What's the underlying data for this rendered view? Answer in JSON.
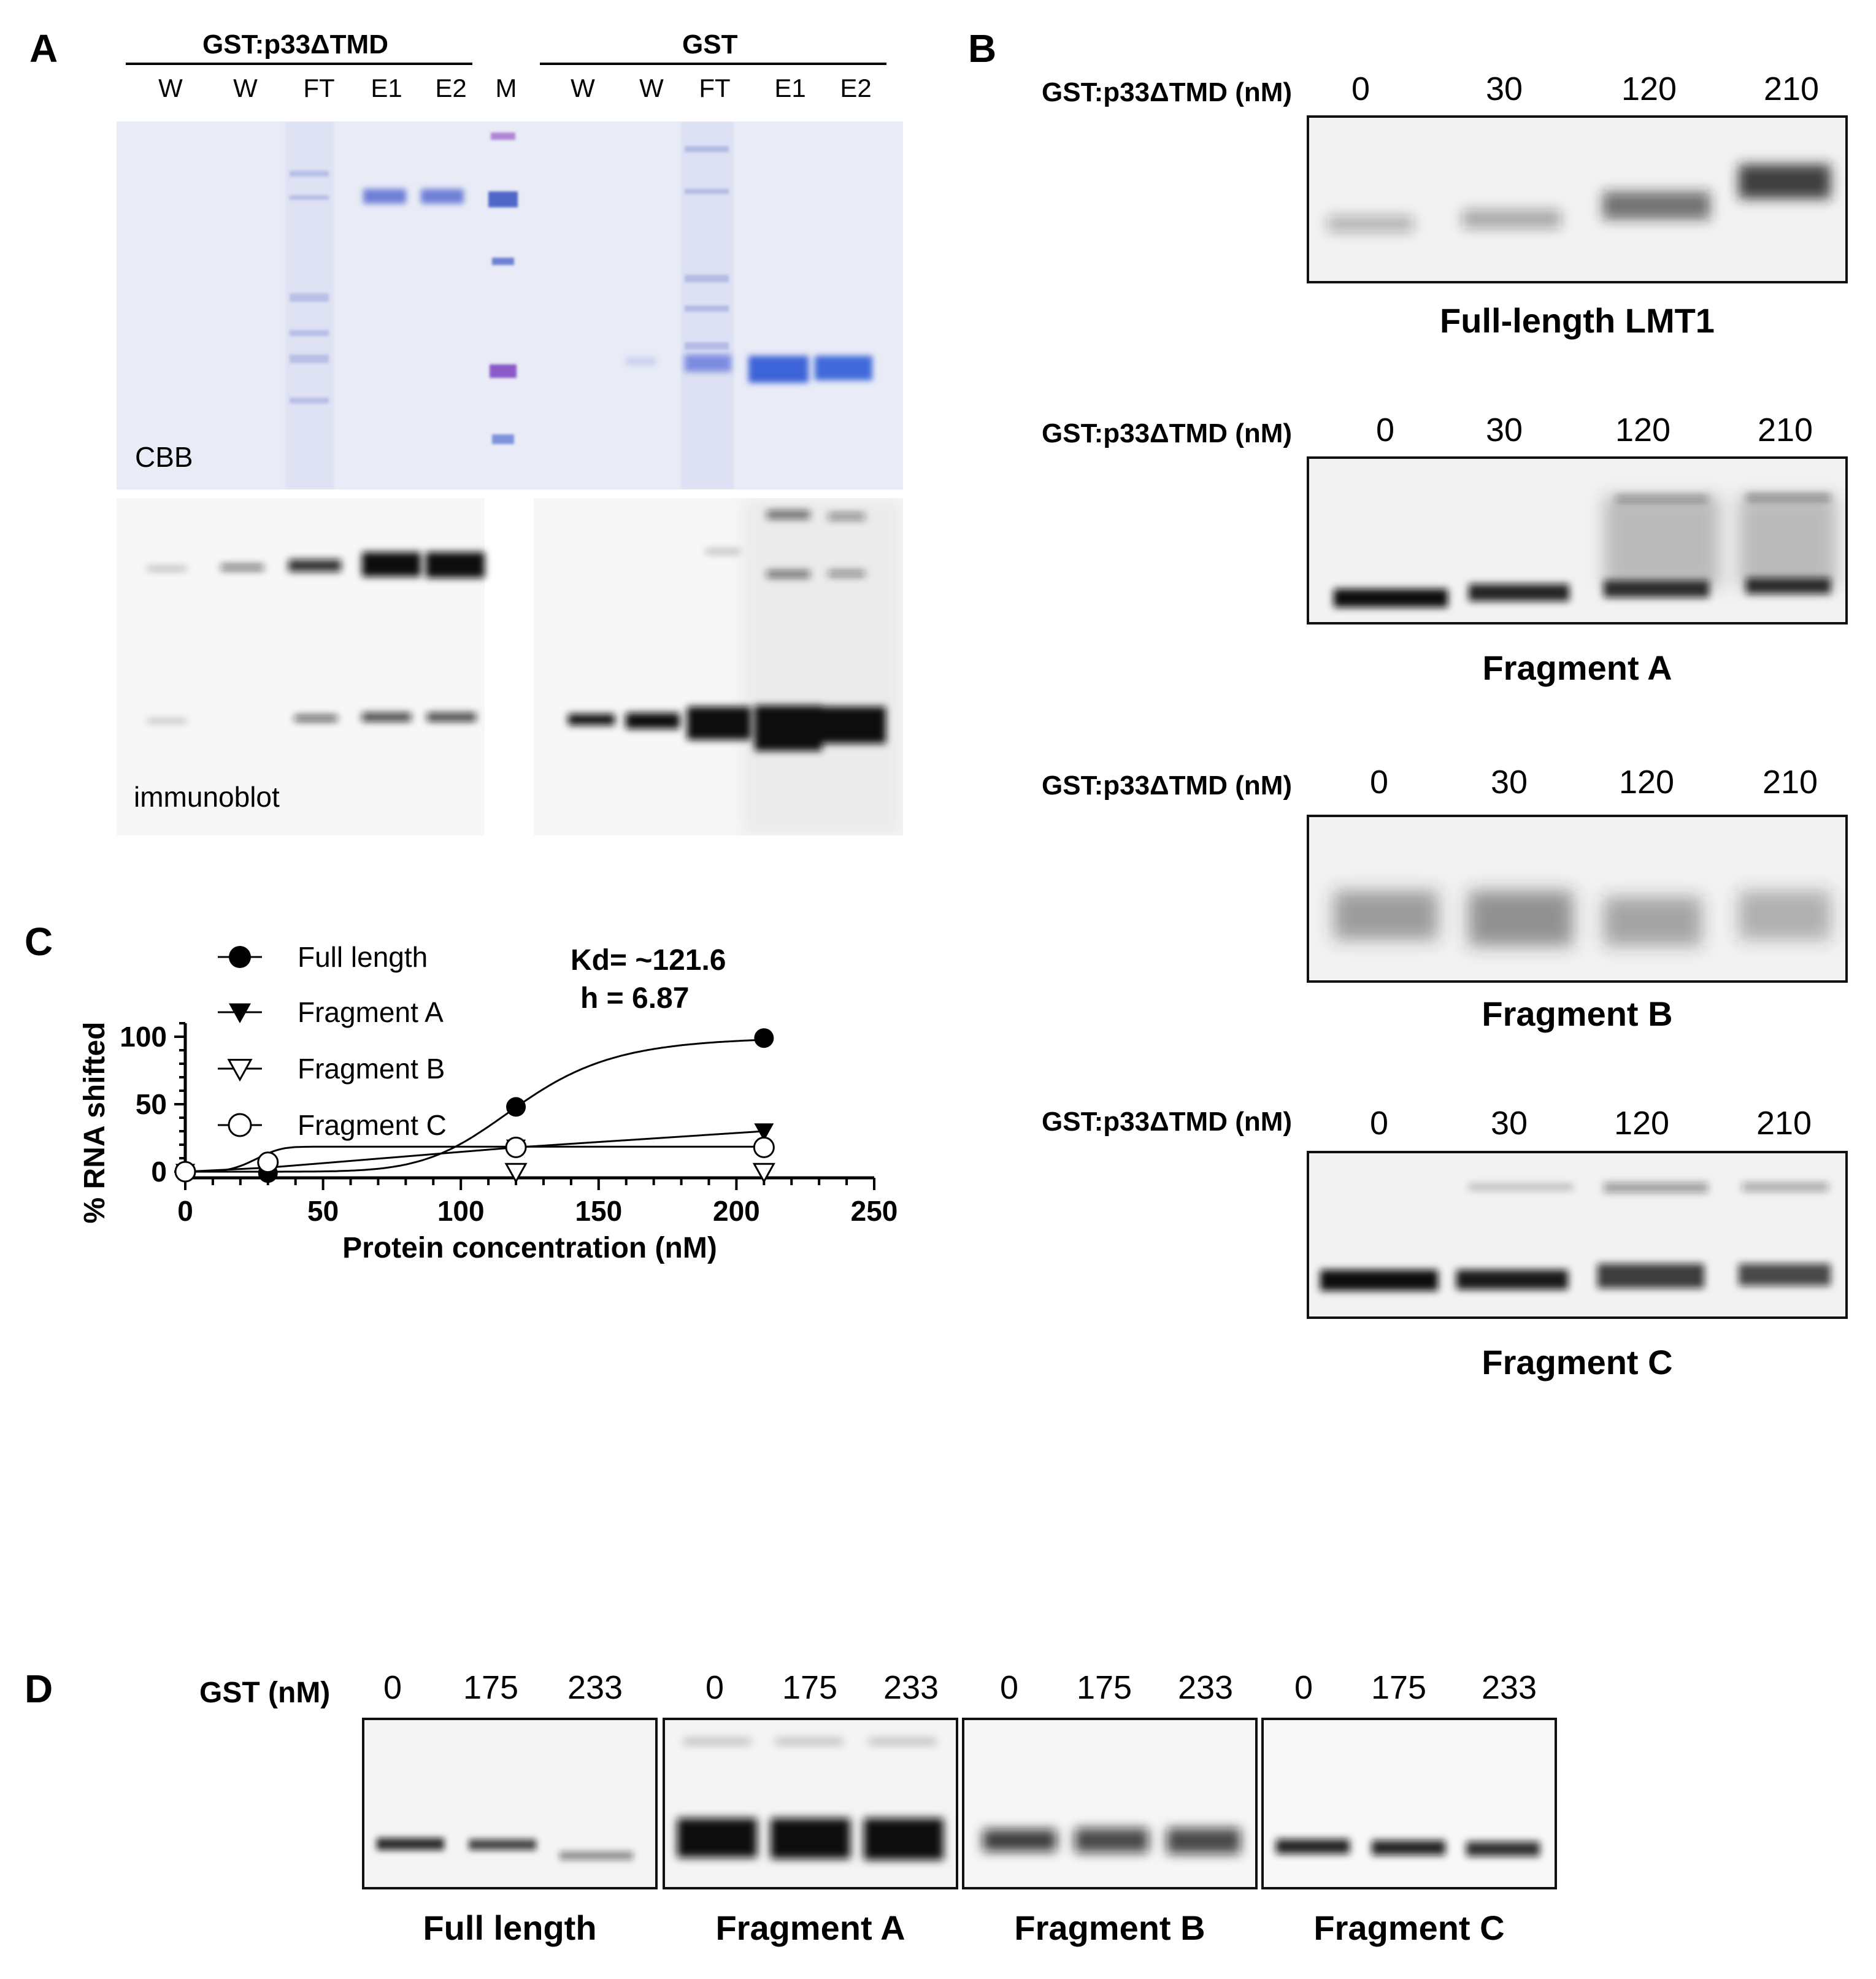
{
  "panel_a": {
    "label": "A",
    "group_left": "GST:p33ΔTMD",
    "group_right": "GST",
    "lanes": [
      "W",
      "W",
      "FT",
      "E1",
      "E2",
      "M",
      "W",
      "W",
      "FT",
      "E1",
      "E2"
    ],
    "cbb_label": "CBB",
    "blot_label": "immunoblot"
  },
  "panel_b": {
    "label": "B",
    "condition_label": "GST:p33ΔTMD (nM)",
    "concentrations": [
      "0",
      "30",
      "120",
      "210"
    ],
    "gels": [
      {
        "caption": "Full-length LMT1"
      },
      {
        "caption": "Fragment A"
      },
      {
        "caption": "Fragment B"
      },
      {
        "caption": "Fragment C"
      }
    ]
  },
  "panel_c": {
    "label": "C",
    "annotation_kd": "Kd= ~121.6",
    "annotation_h": "h = 6.87"
  },
  "chart_data": {
    "type": "scatter",
    "xlabel": "Protein concentration (nM)",
    "ylabel": "% RNA shifted",
    "xlim": [
      0,
      250
    ],
    "ylim": [
      0,
      110
    ],
    "xticks": [
      "0",
      "50",
      "100",
      "150",
      "200",
      "250"
    ],
    "yticks": [
      "0",
      "50",
      "100"
    ],
    "legend_position": "top-left",
    "series": [
      {
        "name": "Full length",
        "marker": "filled-circle",
        "x": [
          0,
          30,
          120,
          210
        ],
        "y": [
          0,
          -1,
          48,
          99
        ],
        "err": [
          0,
          0,
          2,
          1.5
        ],
        "fit": "hill",
        "kd": 121.6,
        "h": 6.87,
        "top": 100
      },
      {
        "name": "Fragment A",
        "marker": "filled-triangle-down",
        "x": [
          0,
          30,
          120,
          210
        ],
        "y": [
          0,
          3,
          18,
          30
        ],
        "err": [
          0,
          0,
          4,
          5
        ],
        "fit": "linear"
      },
      {
        "name": "Fragment B",
        "marker": "open-triangle-down",
        "x": [
          120,
          210
        ],
        "y": [
          0,
          0
        ],
        "err": [
          0,
          0
        ],
        "fit": "none"
      },
      {
        "name": "Fragment C",
        "marker": "open-circle",
        "x": [
          0,
          30,
          120,
          210
        ],
        "y": [
          0,
          7,
          18,
          18
        ],
        "err": [
          0,
          0,
          2,
          4
        ],
        "fit": "plateau",
        "top": 18.5
      }
    ]
  },
  "panel_d": {
    "label": "D",
    "condition_label": "GST (nM)",
    "concentrations": [
      "0",
      "175",
      "233"
    ],
    "gels": [
      {
        "caption": "Full length"
      },
      {
        "caption": "Fragment A"
      },
      {
        "caption": "Fragment B"
      },
      {
        "caption": "Fragment C"
      }
    ]
  }
}
